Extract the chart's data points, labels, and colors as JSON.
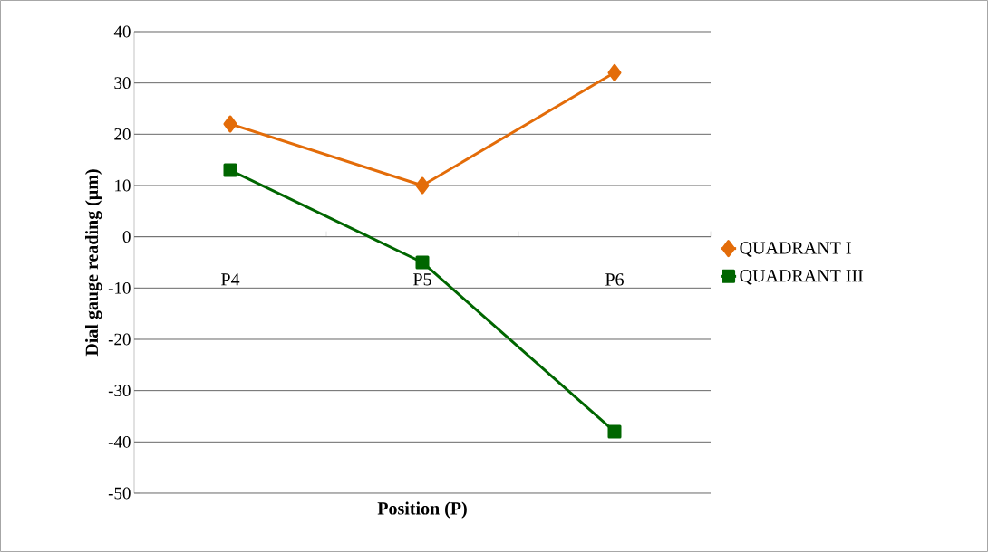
{
  "chart_data": {
    "type": "line",
    "xlabel": "Position (P)",
    "ylabel": "Dial gauge reading (µm)",
    "categories": [
      "P4",
      "P5",
      "P6"
    ],
    "series": [
      {
        "name": "QUADRANT I",
        "color": "#e36c09",
        "values": [
          22,
          10,
          32
        ],
        "marker": "diamond"
      },
      {
        "name": "QUADRANT III",
        "color": "#006600",
        "values": [
          13,
          -5,
          -38
        ],
        "marker": "square"
      }
    ],
    "ylim": [
      -50,
      40
    ],
    "yticks": [
      -50,
      -40,
      -30,
      -20,
      -10,
      0,
      10,
      20,
      30,
      40
    ],
    "grid": "y",
    "legend": "right",
    "line_style": "solid"
  }
}
